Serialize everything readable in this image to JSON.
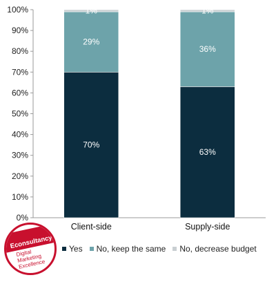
{
  "chart_data": {
    "type": "bar",
    "stacked": true,
    "categories": [
      "Client-side",
      "Supply-side"
    ],
    "series": [
      {
        "name": "Yes",
        "values": [
          70,
          63
        ],
        "labels": [
          "70%",
          "63%"
        ],
        "color": "#0c2d3f"
      },
      {
        "name": "No, keep the same",
        "values": [
          29,
          36
        ],
        "labels": [
          "29%",
          "36%"
        ],
        "color": "#6da3aa"
      },
      {
        "name": "No, decrease budget",
        "values": [
          1,
          1
        ],
        "labels": [
          "1%",
          "1%"
        ],
        "color": "#c9cfd2"
      }
    ],
    "yticks": [
      "0%",
      "10%",
      "20%",
      "30%",
      "40%",
      "50%",
      "60%",
      "70%",
      "80%",
      "90%",
      "100%"
    ],
    "ylim": [
      0,
      100
    ],
    "legend_position": "bottom",
    "grid": false
  },
  "logo": {
    "brand": "Econsultancy",
    "tagline": "Digital\nMarketing\nExcellence"
  }
}
